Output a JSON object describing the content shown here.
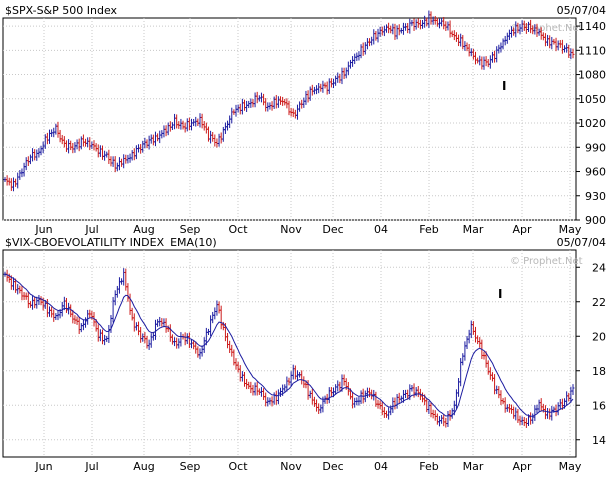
{
  "chart_data": [
    {
      "type": "ohlc",
      "title": "$SPX-S&P 500 Index",
      "date_label": "05/07/04",
      "watermark": "© Prophet.Net",
      "ylim": [
        900,
        1150
      ],
      "yticks": [
        900,
        930,
        960,
        990,
        1020,
        1050,
        1080,
        1110,
        1140
      ],
      "x_labels": [
        "Jun",
        "Jul",
        "Aug",
        "Sep",
        "Oct",
        "Nov",
        "Dec",
        "04",
        "Feb",
        "Mar",
        "Apr",
        "May"
      ],
      "grid": true,
      "annotations": [
        {
          "text": "I",
          "near": "Mar low"
        }
      ],
      "weekly_close_approx": [
        948,
        944,
        962,
        978,
        985,
        1002,
        1012,
        994,
        988,
        998,
        996,
        984,
        980,
        966,
        972,
        982,
        990,
        998,
        1004,
        1010,
        1022,
        1016,
        1018,
        1026,
        1005,
        994,
        1016,
        1034,
        1040,
        1046,
        1052,
        1040,
        1048,
        1044,
        1030,
        1044,
        1058,
        1066,
        1064,
        1074,
        1082,
        1096,
        1110,
        1122,
        1130,
        1140,
        1132,
        1136,
        1144,
        1140,
        1150,
        1146,
        1140,
        1128,
        1118,
        1104,
        1096,
        1094,
        1108,
        1126,
        1134,
        1140,
        1138,
        1130,
        1122,
        1118,
        1112,
        1105
      ],
      "colors": {
        "up": "#1c1ca0",
        "down": "#cc1a1a"
      }
    },
    {
      "type": "ohlc",
      "title": "$VIX-CBOEVOLATILITY INDEX",
      "indicator": "EMA(10)",
      "date_label": "05/07/04",
      "watermark": "© Prophet.Net",
      "ylim": [
        13,
        25
      ],
      "yticks": [
        14,
        16,
        18,
        20,
        22,
        24
      ],
      "x_labels": [
        "Jun",
        "Jul",
        "Aug",
        "Sep",
        "Oct",
        "Nov",
        "Dec",
        "04",
        "Feb",
        "Mar",
        "Apr",
        "May"
      ],
      "grid": true,
      "annotations": [
        {
          "text": "I",
          "near": "Mar high"
        }
      ],
      "weekly_close_approx": [
        23.5,
        23.0,
        22.5,
        21.8,
        22.2,
        21.5,
        21.0,
        22.0,
        21.0,
        20.5,
        21.5,
        20.0,
        19.8,
        22.5,
        23.5,
        21.0,
        20.0,
        19.5,
        21.0,
        20.5,
        19.5,
        20.0,
        19.5,
        19.0,
        20.5,
        21.8,
        20.0,
        18.5,
        17.5,
        17.0,
        16.8,
        16.2,
        16.5,
        17.0,
        18.0,
        17.5,
        16.5,
        15.8,
        16.5,
        17.0,
        17.5,
        16.0,
        16.5,
        16.8,
        16.0,
        15.5,
        16.2,
        16.5,
        17.0,
        16.5,
        15.8,
        15.2,
        15.0,
        16.0,
        19.0,
        20.5,
        19.5,
        18.0,
        16.8,
        16.0,
        15.5,
        15.0,
        15.2,
        16.0,
        15.5,
        15.8,
        16.2,
        17.0
      ],
      "colors": {
        "up": "#1c1ca0",
        "down": "#cc1a1a",
        "ema": "#1c1ca0"
      }
    }
  ]
}
